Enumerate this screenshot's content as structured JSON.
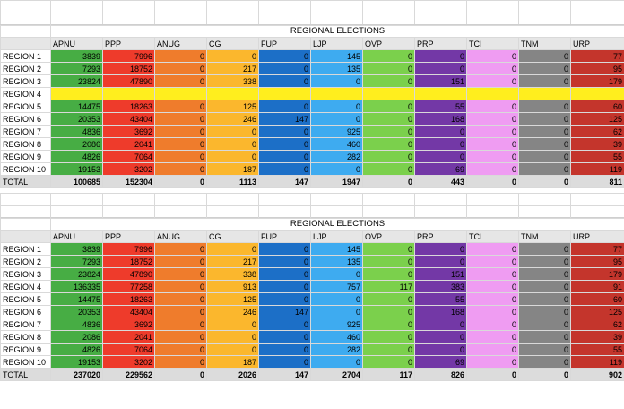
{
  "title": "REGIONAL ELECTIONS",
  "columns": [
    "APNU",
    "PPP",
    "ANUG",
    "CG",
    "FUP",
    "LJP",
    "OVP",
    "PRP",
    "TCI",
    "TNM",
    "URP"
  ],
  "column_colors": [
    "#47ad44",
    "#ee3b2b",
    "#ef7c2c",
    "#fbb72d",
    "#1c6fc7",
    "#3eabf0",
    "#7bd04c",
    "#7338a6",
    "#ef9cf2",
    "#858585",
    "#c4352c"
  ],
  "highlight_color": "#ffee1e",
  "tables": [
    {
      "title": "REGIONAL ELECTIONS",
      "rows": [
        {
          "region": "REGION 1",
          "values": [
            "3839",
            "7996",
            "0",
            "0",
            "0",
            "145",
            "0",
            "0",
            "0",
            "0",
            "77"
          ]
        },
        {
          "region": "REGION 2",
          "values": [
            "7293",
            "18752",
            "0",
            "217",
            "0",
            "135",
            "0",
            "0",
            "0",
            "0",
            "95"
          ]
        },
        {
          "region": "REGION 3",
          "values": [
            "23824",
            "47890",
            "0",
            "338",
            "0",
            "0",
            "0",
            "151",
            "0",
            "0",
            "179"
          ]
        },
        {
          "region": "REGION 4",
          "values": [
            "",
            "",
            "",
            "",
            "",
            "",
            "",
            "",
            "",
            "",
            ""
          ],
          "highlight": true
        },
        {
          "region": "REGION 5",
          "values": [
            "14475",
            "18263",
            "0",
            "125",
            "0",
            "0",
            "0",
            "55",
            "0",
            "0",
            "60"
          ]
        },
        {
          "region": "REGION 6",
          "values": [
            "20353",
            "43404",
            "0",
            "246",
            "147",
            "0",
            "0",
            "168",
            "0",
            "0",
            "125"
          ]
        },
        {
          "region": "REGION 7",
          "values": [
            "4836",
            "3692",
            "0",
            "0",
            "0",
            "925",
            "0",
            "0",
            "0",
            "0",
            "62"
          ]
        },
        {
          "region": "REGION 8",
          "values": [
            "2086",
            "2041",
            "0",
            "0",
            "0",
            "460",
            "0",
            "0",
            "0",
            "0",
            "39"
          ]
        },
        {
          "region": "REGION 9",
          "values": [
            "4826",
            "7064",
            "0",
            "0",
            "0",
            "282",
            "0",
            "0",
            "0",
            "0",
            "55"
          ]
        },
        {
          "region": "REGION 10",
          "values": [
            "19153",
            "3202",
            "0",
            "187",
            "0",
            "0",
            "0",
            "69",
            "0",
            "0",
            "119"
          ]
        }
      ],
      "total": {
        "label": "TOTAL",
        "values": [
          "100685",
          "152304",
          "0",
          "1113",
          "147",
          "1947",
          "0",
          "443",
          "0",
          "0",
          "811"
        ]
      }
    },
    {
      "title": "REGIONAL ELECTIONS",
      "rows": [
        {
          "region": "REGION 1",
          "values": [
            "3839",
            "7996",
            "0",
            "0",
            "0",
            "145",
            "0",
            "0",
            "0",
            "0",
            "77"
          ]
        },
        {
          "region": "REGION 2",
          "values": [
            "7293",
            "18752",
            "0",
            "217",
            "0",
            "135",
            "0",
            "0",
            "0",
            "0",
            "95"
          ]
        },
        {
          "region": "REGION 3",
          "values": [
            "23824",
            "47890",
            "0",
            "338",
            "0",
            "0",
            "0",
            "151",
            "0",
            "0",
            "179"
          ]
        },
        {
          "region": "REGION 4",
          "values": [
            "136335",
            "77258",
            "0",
            "913",
            "0",
            "757",
            "117",
            "383",
            "0",
            "0",
            "91"
          ]
        },
        {
          "region": "REGION 5",
          "values": [
            "14475",
            "18263",
            "0",
            "125",
            "0",
            "0",
            "0",
            "55",
            "0",
            "0",
            "60"
          ]
        },
        {
          "region": "REGION 6",
          "values": [
            "20353",
            "43404",
            "0",
            "246",
            "147",
            "0",
            "0",
            "168",
            "0",
            "0",
            "125"
          ]
        },
        {
          "region": "REGION 7",
          "values": [
            "4836",
            "3692",
            "0",
            "0",
            "0",
            "925",
            "0",
            "0",
            "0",
            "0",
            "62"
          ]
        },
        {
          "region": "REGION 8",
          "values": [
            "2086",
            "2041",
            "0",
            "0",
            "0",
            "460",
            "0",
            "0",
            "0",
            "0",
            "39"
          ]
        },
        {
          "region": "REGION 9",
          "values": [
            "4826",
            "7064",
            "0",
            "0",
            "0",
            "282",
            "0",
            "0",
            "0",
            "0",
            "55"
          ]
        },
        {
          "region": "REGION 10",
          "values": [
            "19153",
            "3202",
            "0",
            "187",
            "0",
            "0",
            "0",
            "69",
            "0",
            "0",
            "119"
          ]
        }
      ],
      "total": {
        "label": "TOTAL",
        "values": [
          "237020",
          "229562",
          "0",
          "2026",
          "147",
          "2704",
          "117",
          "826",
          "0",
          "0",
          "902"
        ]
      }
    }
  ]
}
